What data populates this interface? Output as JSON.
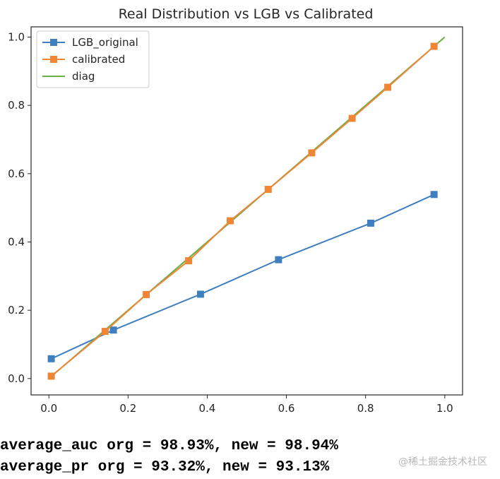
{
  "chart_data": {
    "type": "line",
    "title": "Real Distribution vs LGB vs Calibrated",
    "xlabel": "",
    "ylabel": "",
    "xlim": [
      -0.045,
      1.045
    ],
    "ylim": [
      -0.048,
      1.03
    ],
    "xticks": [
      0.0,
      0.2,
      0.4,
      0.6,
      0.8,
      1.0
    ],
    "xtick_labels": [
      "0.0",
      "0.2",
      "0.4",
      "0.6",
      "0.8",
      "1.0"
    ],
    "yticks": [
      0.0,
      0.2,
      0.4,
      0.6,
      0.8,
      1.0
    ],
    "ytick_labels": [
      "0.0",
      "0.2",
      "0.4",
      "0.6",
      "0.8",
      "1.0"
    ],
    "grid": false,
    "legend_position": "top-left",
    "series": [
      {
        "name": "LGB_original",
        "color": "#3f7fbf",
        "marker": "square",
        "x": [
          0.006,
          0.163,
          0.383,
          0.58,
          0.813,
          0.973
        ],
        "y": [
          0.058,
          0.142,
          0.247,
          0.348,
          0.455,
          0.539
        ]
      },
      {
        "name": "calibrated",
        "color": "#ef8636",
        "marker": "square",
        "x": [
          0.006,
          0.142,
          0.246,
          0.353,
          0.458,
          0.554,
          0.664,
          0.766,
          0.856,
          0.973
        ],
        "y": [
          0.007,
          0.138,
          0.246,
          0.345,
          0.462,
          0.554,
          0.661,
          0.762,
          0.853,
          0.973
        ]
      },
      {
        "name": "diag",
        "color": "#6aae47",
        "marker": "none",
        "x": [
          0.006,
          1.0
        ],
        "y": [
          0.006,
          1.0
        ]
      }
    ]
  },
  "output": {
    "auc_line": "average_auc org = 98.93%, new = 98.94%",
    "pr_line": "average_pr org = 93.32%, new = 93.13%"
  },
  "watermark": "@稀土掘金技术社区"
}
